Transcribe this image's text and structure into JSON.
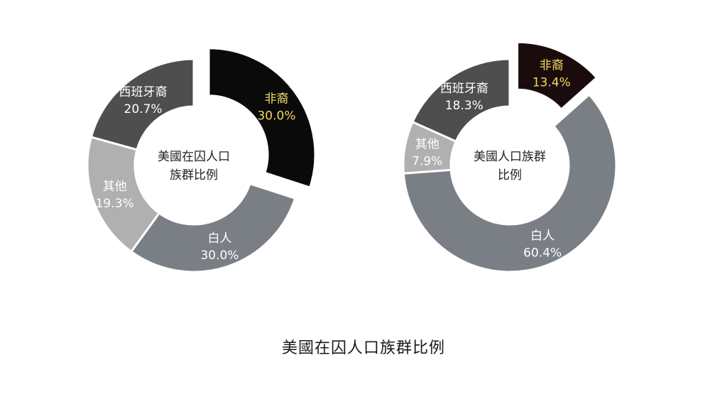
{
  "caption": "美國在囚人口族群比例",
  "colors": {
    "black": "#0a0a0a",
    "white": "#7a7f86",
    "hispanic": "#4e4e4e",
    "other": "#b0b0b0",
    "label_light": "#ffffff",
    "label_highlight": "#f3d860"
  },
  "chart_data": [
    {
      "type": "pie",
      "title": "美國在囚人口族群比例",
      "center_lines": [
        "美國在囚人口",
        "族群比例"
      ],
      "slices": [
        {
          "name": "非裔",
          "value": 30.0,
          "label": "30.0%",
          "color": "#0a0a0a",
          "label_color": "#f3d860",
          "exploded": true
        },
        {
          "name": "白人",
          "value": 30.0,
          "label": "30.0%",
          "color": "#7a7f86",
          "label_color": "#ffffff",
          "exploded": false
        },
        {
          "name": "其他",
          "value": 19.3,
          "label": "19.3%",
          "color": "#b0b0b0",
          "label_color": "#ffffff",
          "exploded": false
        },
        {
          "name": "西班牙裔",
          "value": 20.7,
          "label": "20.7%",
          "color": "#4e4e4e",
          "label_color": "#ffffff",
          "exploded": false
        }
      ]
    },
    {
      "type": "pie",
      "title": "美國人口族群比例",
      "center_lines": [
        "美國人口族群",
        "比例"
      ],
      "slices": [
        {
          "name": "非裔",
          "value": 13.4,
          "label": "13.4%",
          "color": "#1a0c0c",
          "label_color": "#f3d860",
          "exploded": true
        },
        {
          "name": "白人",
          "value": 60.4,
          "label": "60.4%",
          "color": "#7a7f86",
          "label_color": "#ffffff",
          "exploded": false
        },
        {
          "name": "其他",
          "value": 7.9,
          "label": "7.9%",
          "color": "#b0b0b0",
          "label_color": "#ffffff",
          "exploded": false
        },
        {
          "name": "西班牙裔",
          "value": 18.3,
          "label": "18.3%",
          "color": "#4e4e4e",
          "label_color": "#ffffff",
          "exploded": false
        }
      ]
    }
  ]
}
